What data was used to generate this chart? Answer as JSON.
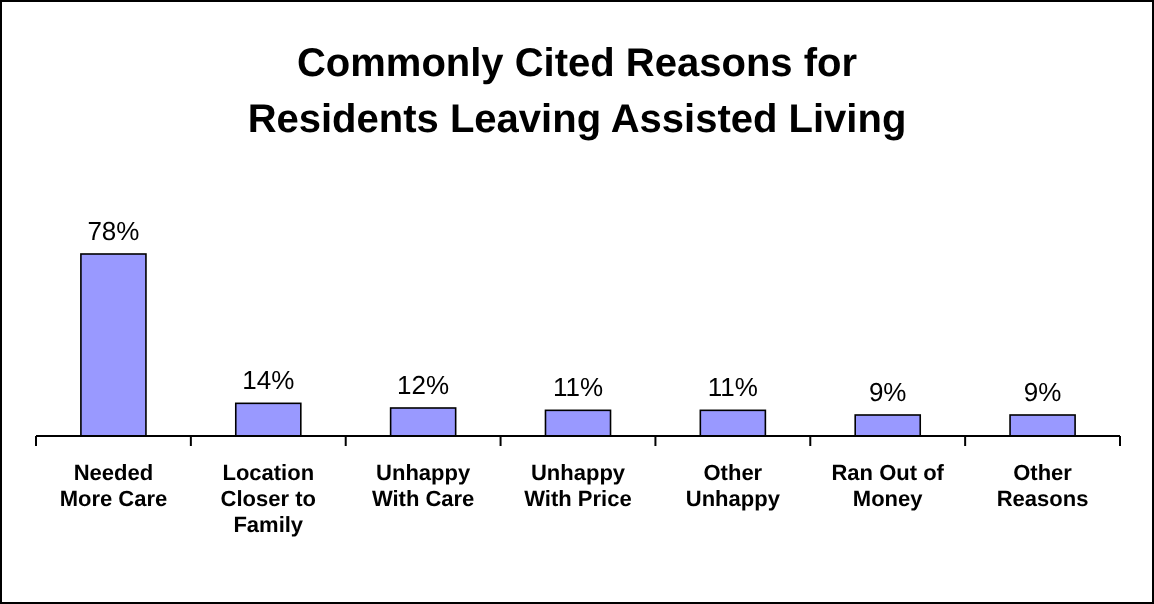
{
  "chart_data": {
    "type": "bar",
    "title": "Commonly Cited Reasons for Residents Leaving Assisted Living",
    "categories": [
      "Needed More Care",
      "Location Closer to Family",
      "Unhappy With Care",
      "Unhappy With Price",
      "Other Unhappy",
      "Ran Out of Money",
      "Other Reasons"
    ],
    "values": [
      78,
      14,
      12,
      11,
      11,
      9,
      9
    ],
    "value_labels": [
      "78%",
      "14%",
      "12%",
      "11%",
      "11%",
      "9%",
      "9%"
    ],
    "color": "#9999ff"
  }
}
